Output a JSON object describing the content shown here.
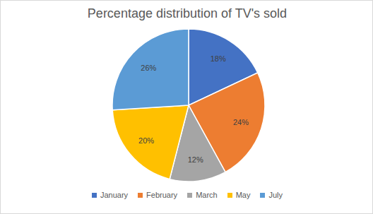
{
  "chart_data": {
    "type": "pie",
    "title": "Percentage distribution of TV's sold",
    "categories": [
      "January",
      "February",
      "March",
      "May",
      "July"
    ],
    "values": [
      18,
      24,
      12,
      20,
      26
    ],
    "value_labels": [
      "18%",
      "24%",
      "12%",
      "20%",
      "26%"
    ],
    "colors": [
      "#4472c4",
      "#ed7d31",
      "#a5a5a5",
      "#ffc000",
      "#5b9bd5"
    ],
    "data_labels": true,
    "legend": "bottom"
  }
}
